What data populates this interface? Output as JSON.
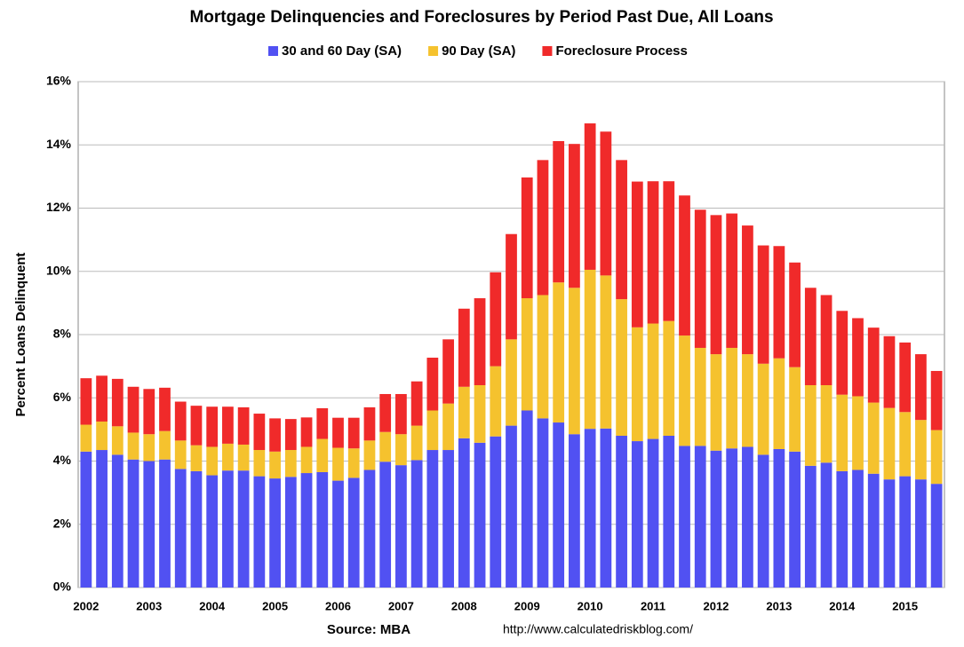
{
  "chart_data": {
    "type": "stacked_bar",
    "title": "Mortgage Delinquencies and Foreclosures by Period Past Due, All Loans",
    "ylabel": "Percent Loans Delinquent",
    "source": "Source: MBA",
    "url": "http://www.calculatedriskblog.com/",
    "categories": [
      "2002",
      null,
      null,
      null,
      "2003",
      null,
      null,
      null,
      "2004",
      null,
      null,
      null,
      "2005",
      null,
      null,
      null,
      "2006",
      null,
      null,
      null,
      "2007",
      null,
      null,
      null,
      "2008",
      null,
      null,
      null,
      "2009",
      null,
      null,
      null,
      "2010",
      null,
      null,
      null,
      "2011",
      null,
      null,
      null,
      "2012",
      null,
      null,
      null,
      "2013",
      null,
      null,
      null,
      "2014",
      null,
      null,
      null,
      "2015",
      null,
      null
    ],
    "series": [
      {
        "name": "30 and 60 Day (SA)",
        "color": "#5151f2",
        "values": [
          4.3,
          4.35,
          4.2,
          4.05,
          4.0,
          4.05,
          3.75,
          3.68,
          3.55,
          3.7,
          3.7,
          3.52,
          3.45,
          3.5,
          3.62,
          3.65,
          3.38,
          3.47,
          3.72,
          3.98,
          3.87,
          4.03,
          4.35,
          4.35,
          4.72,
          4.58,
          4.78,
          5.12,
          5.6,
          5.35,
          5.22,
          4.85,
          5.02,
          5.03,
          4.8,
          4.63,
          4.7,
          4.8,
          4.48,
          4.48,
          4.33,
          4.4,
          4.45,
          4.2,
          4.38,
          4.3,
          3.85,
          3.95,
          3.68,
          3.72,
          3.6,
          3.42,
          3.52,
          3.42,
          3.28
        ]
      },
      {
        "name": "90 Day (SA)",
        "color": "#f5c22e",
        "values": [
          0.85,
          0.9,
          0.9,
          0.85,
          0.85,
          0.9,
          0.9,
          0.82,
          0.9,
          0.85,
          0.82,
          0.83,
          0.85,
          0.85,
          0.83,
          1.05,
          1.04,
          0.93,
          0.93,
          0.94,
          0.98,
          1.09,
          1.25,
          1.47,
          1.63,
          1.82,
          2.22,
          2.73,
          3.55,
          3.9,
          4.43,
          4.63,
          5.03,
          4.84,
          4.32,
          3.6,
          3.65,
          3.63,
          3.49,
          3.1,
          3.05,
          3.18,
          2.93,
          2.88,
          2.87,
          2.67,
          2.55,
          2.45,
          2.42,
          2.33,
          2.25,
          2.26,
          2.03,
          1.88,
          1.7
        ]
      },
      {
        "name": "Foreclosure Process",
        "color": "#f02a2a",
        "values": [
          1.47,
          1.45,
          1.5,
          1.45,
          1.43,
          1.37,
          1.23,
          1.25,
          1.27,
          1.17,
          1.18,
          1.15,
          1.05,
          0.98,
          0.93,
          0.97,
          0.95,
          0.97,
          1.05,
          1.2,
          1.27,
          1.4,
          1.67,
          2.03,
          2.47,
          2.75,
          2.97,
          3.33,
          3.82,
          4.27,
          4.47,
          4.55,
          4.63,
          4.55,
          4.4,
          4.61,
          4.5,
          4.42,
          4.43,
          4.37,
          4.4,
          4.25,
          4.07,
          3.74,
          3.55,
          3.31,
          3.08,
          2.85,
          2.65,
          2.47,
          2.37,
          2.27,
          2.2,
          2.08,
          1.87
        ]
      }
    ],
    "ylim": [
      0,
      16
    ],
    "yticks": [
      {
        "value": 0,
        "label": "0%"
      },
      {
        "value": 2,
        "label": "2%"
      },
      {
        "value": 4,
        "label": "4%"
      },
      {
        "value": 6,
        "label": "6%"
      },
      {
        "value": 8,
        "label": "8%"
      },
      {
        "value": 10,
        "label": "10%"
      },
      {
        "value": 12,
        "label": "12%"
      },
      {
        "value": 14,
        "label": "14%"
      },
      {
        "value": 16,
        "label": "16%"
      }
    ],
    "grid": true
  }
}
